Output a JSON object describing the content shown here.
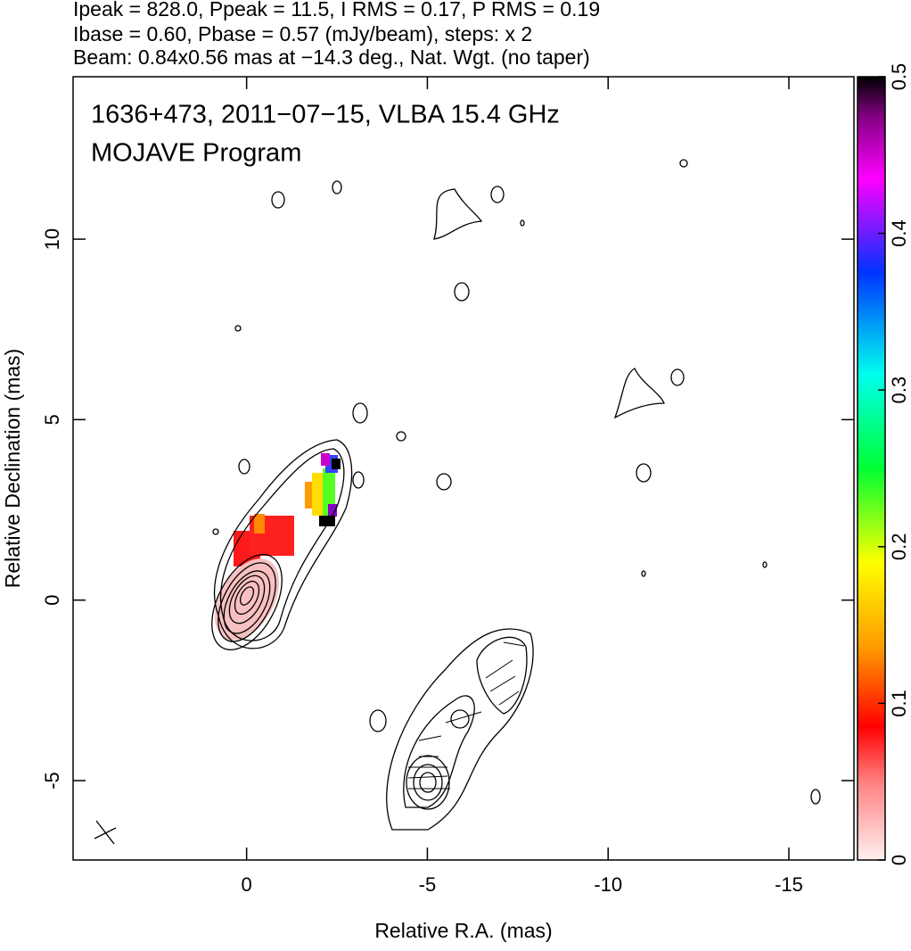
{
  "chart_data": {
    "type": "image",
    "header": [
      "Ipeak = 828.0, Ppeak = 11.5, I RMS = 0.17, P RMS = 0.19",
      "Ibase = 0.60, Pbase = 0.57 (mJy/beam), steps: x 2",
      "Beam: 0.84x0.56 mas at −14.3 deg., Nat. Wgt. (no taper)"
    ],
    "annotations": [
      "1636+473, 2011−07−15, VLBA 15.4 GHz",
      "MOJAVE Program"
    ],
    "x_label": "Relative R.A. (mas)",
    "y_label": "Relative Declination (mas)",
    "xlim": [
      4.8,
      -16.8
    ],
    "xticks": [
      0,
      -5,
      -10,
      -15
    ],
    "ylim": [
      -7.2,
      14.5
    ],
    "yticks": [
      -5,
      0,
      5,
      10
    ],
    "colorbar_lim": [
      0,
      0.5
    ],
    "colorbar_ticks": [
      0,
      0.1,
      0.2,
      0.3,
      0.4,
      0.5
    ]
  }
}
